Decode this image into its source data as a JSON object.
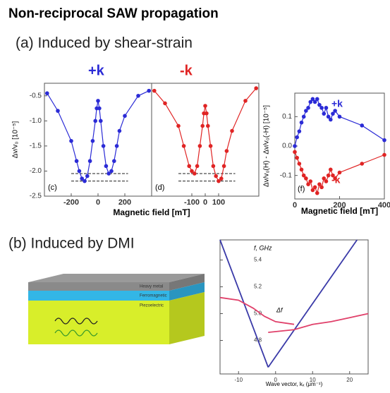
{
  "title": "Non-reciprocal SAW propagation",
  "section_a": "(a) Induced by shear-strain",
  "section_b": "(b) Induced by DMI",
  "k_plus": "+k",
  "k_minus": "-k",
  "xlabel_cd": "Magnetic field [mT]",
  "chart_data": [
    {
      "type": "line",
      "panel": "(c)",
      "markers": true,
      "ylabel": "Δv/v₀ [10⁻⁵]",
      "xlim": [
        -400,
        400
      ],
      "xticks": [
        -200,
        0,
        200
      ],
      "ylim": [
        -2.5,
        -0.25
      ],
      "yticks": [
        -0.5,
        {
          "value": -1,
          "label": "-1.0"
        },
        -1.5,
        {
          "value": -2,
          "label": "-2.0"
        },
        -2.5
      ],
      "hlines": [
        -2.05,
        -2.2
      ],
      "series": [
        {
          "color": "#2b2bd6",
          "x": [
            -380,
            -300,
            -200,
            -160,
            -140,
            -120,
            -100,
            -80,
            -60,
            -40,
            -20,
            -10,
            0,
            10,
            20,
            40,
            60,
            80,
            100,
            120,
            140,
            160,
            200,
            300,
            380
          ],
          "values": [
            -0.45,
            -0.8,
            -1.4,
            -1.8,
            -2.0,
            -2.15,
            -2.2,
            -2.1,
            -1.8,
            -1.4,
            -1.0,
            -0.75,
            -0.6,
            -0.75,
            -1.0,
            -1.5,
            -1.9,
            -2.05,
            -2.0,
            -1.8,
            -1.5,
            -1.2,
            -0.9,
            -0.5,
            -0.4
          ]
        }
      ]
    },
    {
      "type": "line",
      "panel": "(d)",
      "markers": true,
      "xlim": [
        -400,
        400
      ],
      "xticks": [
        -100,
        0,
        100
      ],
      "ylim": [
        -2.5,
        -0.25
      ],
      "hlines": [
        -2.05,
        -2.2
      ],
      "series": [
        {
          "color": "#e02424",
          "x": [
            -380,
            -300,
            -200,
            -160,
            -120,
            -100,
            -80,
            -60,
            -40,
            -20,
            -10,
            0,
            10,
            20,
            40,
            60,
            80,
            100,
            120,
            140,
            160,
            200,
            300,
            380
          ],
          "values": [
            -0.4,
            -0.65,
            -1.1,
            -1.5,
            -1.9,
            -2.0,
            -2.05,
            -1.9,
            -1.5,
            -1.1,
            -0.85,
            -0.7,
            -0.85,
            -1.1,
            -1.5,
            -1.9,
            -2.1,
            -2.2,
            -2.15,
            -1.9,
            -1.6,
            -1.2,
            -0.6,
            -0.35
          ]
        }
      ]
    },
    {
      "type": "line",
      "panel": "(f)",
      "markers": true,
      "ylabel": "Δv/v₀(H) - Δv/v₀(-H) [10⁻⁵]",
      "xlabel": "Magnetic field [mT]",
      "xlim": [
        0,
        400
      ],
      "xticks": [
        0,
        200,
        400
      ],
      "ylim": [
        -0.18,
        0.18
      ],
      "yticks": [
        0.1,
        {
          "value": 0,
          "label": "0.0"
        },
        -0.1
      ],
      "series": [
        {
          "name": "+k",
          "color": "#2b2bd6",
          "x": [
            0,
            10,
            20,
            30,
            40,
            50,
            60,
            70,
            80,
            90,
            100,
            110,
            120,
            130,
            140,
            150,
            160,
            170,
            180,
            200,
            300,
            400
          ],
          "values": [
            0.0,
            0.03,
            0.05,
            0.08,
            0.1,
            0.12,
            0.13,
            0.15,
            0.16,
            0.15,
            0.16,
            0.14,
            0.13,
            0.11,
            0.13,
            0.1,
            0.09,
            0.11,
            0.12,
            0.1,
            0.07,
            0.02
          ]
        },
        {
          "name": "-k",
          "color": "#e02424",
          "x": [
            0,
            10,
            20,
            30,
            40,
            50,
            60,
            70,
            80,
            90,
            100,
            110,
            120,
            130,
            140,
            150,
            160,
            170,
            180,
            200,
            300,
            400
          ],
          "values": [
            -0.02,
            -0.04,
            -0.06,
            -0.08,
            -0.1,
            -0.11,
            -0.13,
            -0.12,
            -0.15,
            -0.14,
            -0.16,
            -0.13,
            -0.14,
            -0.11,
            -0.12,
            -0.1,
            -0.08,
            -0.1,
            -0.11,
            -0.09,
            -0.06,
            -0.03
          ]
        }
      ]
    },
    {
      "type": "line",
      "markers": false,
      "ylabel": "f, GHz",
      "xlabel": "Wave vector, kₓ (μm⁻¹)",
      "annotation": "Δf",
      "xlim": [
        -15,
        25
      ],
      "xticks": [
        -10,
        0,
        10,
        20
      ],
      "ylim": [
        4.55,
        5.55
      ],
      "yticks": [
        5.4,
        5.2,
        {
          "value": 5,
          "label": "5.0"
        },
        4.8
      ],
      "series": [
        {
          "color": "#3a3aa8",
          "x": [
            -15,
            -2
          ],
          "values": [
            5.55,
            4.6
          ]
        },
        {
          "color": "#3a3aa8",
          "x": [
            -2,
            22
          ],
          "values": [
            4.6,
            5.55
          ]
        },
        {
          "color": "#e0406a",
          "x": [
            -15,
            -10,
            -6,
            -3,
            0,
            5
          ],
          "values": [
            5.12,
            5.1,
            5.04,
            4.98,
            4.94,
            4.92
          ]
        },
        {
          "color": "#e0406a",
          "x": [
            -2,
            5,
            10,
            15,
            20,
            25
          ],
          "values": [
            4.86,
            4.88,
            4.92,
            4.94,
            4.97,
            5.0
          ]
        }
      ]
    }
  ],
  "diagram": {
    "layers": [
      "Heavy metal",
      "Ferromagnetic",
      "Piezoelectric"
    ]
  }
}
